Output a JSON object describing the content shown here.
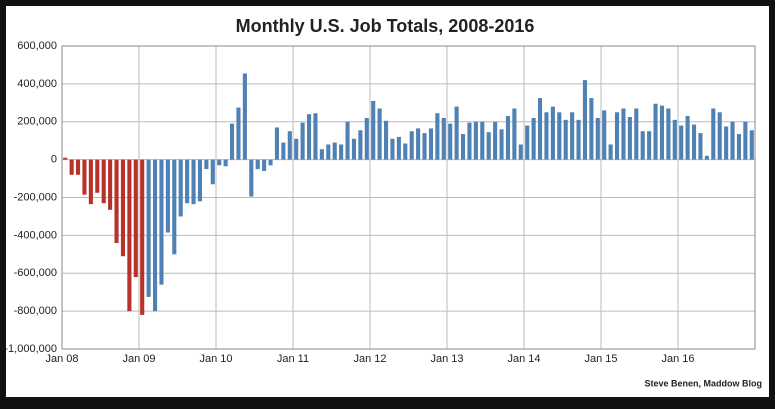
{
  "chart_data": {
    "type": "bar",
    "title": "Monthly U.S. Job Totals, 2008-2016",
    "credit": "Steve Benen, Maddow Blog",
    "categories": [
      "Jan 08",
      null,
      null,
      null,
      null,
      null,
      null,
      null,
      null,
      null,
      null,
      null,
      "Jan 09",
      null,
      null,
      null,
      null,
      null,
      null,
      null,
      null,
      null,
      null,
      null,
      "Jan 10",
      null,
      null,
      null,
      null,
      null,
      null,
      null,
      null,
      null,
      null,
      null,
      "Jan 11",
      null,
      null,
      null,
      null,
      null,
      null,
      null,
      null,
      null,
      null,
      null,
      "Jan 12",
      null,
      null,
      null,
      null,
      null,
      null,
      null,
      null,
      null,
      null,
      null,
      "Jan 13",
      null,
      null,
      null,
      null,
      null,
      null,
      null,
      null,
      null,
      null,
      null,
      "Jan 14",
      null,
      null,
      null,
      null,
      null,
      null,
      null,
      null,
      null,
      null,
      null,
      "Jan 15",
      null,
      null,
      null,
      null,
      null,
      null,
      null,
      null,
      null,
      null,
      null,
      "Jan 16",
      null,
      null,
      null,
      null,
      null,
      null,
      null,
      null,
      null,
      null,
      null
    ],
    "series": [
      {
        "color": "#b8312a",
        "values": [
          10,
          -80,
          -80,
          -185,
          -235,
          -175,
          -230,
          -265,
          -440,
          -510,
          -800,
          -620,
          -820,
          null,
          null,
          null,
          null,
          null,
          null,
          null,
          null,
          null,
          null,
          null,
          null,
          null,
          null,
          null,
          null,
          null,
          null,
          null,
          null,
          null,
          null,
          null,
          null,
          null,
          null,
          null,
          null,
          null,
          null,
          null,
          null,
          null,
          null,
          null,
          null,
          null,
          null,
          null,
          null,
          null,
          null,
          null,
          null,
          null,
          null,
          null,
          null,
          null,
          null,
          null,
          null,
          null,
          null,
          null,
          null,
          null,
          null,
          null,
          null,
          null,
          null,
          null,
          null,
          null,
          null,
          null,
          null,
          null,
          null,
          null,
          null,
          null,
          null,
          null,
          null,
          null,
          null,
          null,
          null,
          null,
          null,
          null,
          null,
          null,
          null,
          null,
          null,
          null,
          null,
          null,
          null,
          null,
          null,
          null
        ]
      },
      {
        "color": "#4f81b5",
        "values": [
          null,
          null,
          null,
          null,
          null,
          null,
          null,
          null,
          null,
          null,
          null,
          null,
          null,
          -725,
          -800,
          -660,
          -385,
          -500,
          -300,
          -230,
          -235,
          -220,
          -50,
          -130,
          -30,
          -35,
          190,
          275,
          455,
          -195,
          -50,
          -60,
          -30,
          170,
          90,
          150,
          110,
          195,
          240,
          245,
          55,
          80,
          90,
          80,
          200,
          110,
          155,
          220,
          310,
          270,
          205,
          110,
          120,
          85,
          150,
          165,
          140,
          165,
          245,
          220,
          190,
          280,
          135,
          195,
          200,
          200,
          145,
          200,
          160,
          230,
          270,
          80,
          180,
          220,
          325,
          250,
          280,
          250,
          210,
          250,
          210,
          420,
          325,
          220,
          260,
          80,
          250,
          270,
          225,
          270,
          150,
          150,
          295,
          285,
          270,
          210,
          180,
          230,
          185,
          140,
          20,
          270,
          250,
          175,
          200,
          135,
          200,
          155
        ]
      }
    ],
    "ylim": [
      -1000000,
      600000
    ],
    "value_unit": 1000,
    "yticks": [
      {
        "value": -1000000,
        "label": "-1,000,000"
      },
      {
        "value": -800000,
        "label": "-800,000"
      },
      {
        "value": -600000,
        "label": "-600,000"
      },
      {
        "value": -400000,
        "label": "-400,000"
      },
      {
        "value": -200000,
        "label": "-200,000"
      },
      0,
      {
        "value": 200000,
        "label": "200,000"
      },
      {
        "value": 400000,
        "label": "400,000"
      },
      {
        "value": 600000,
        "label": "600,000"
      }
    ],
    "grid": true
  }
}
